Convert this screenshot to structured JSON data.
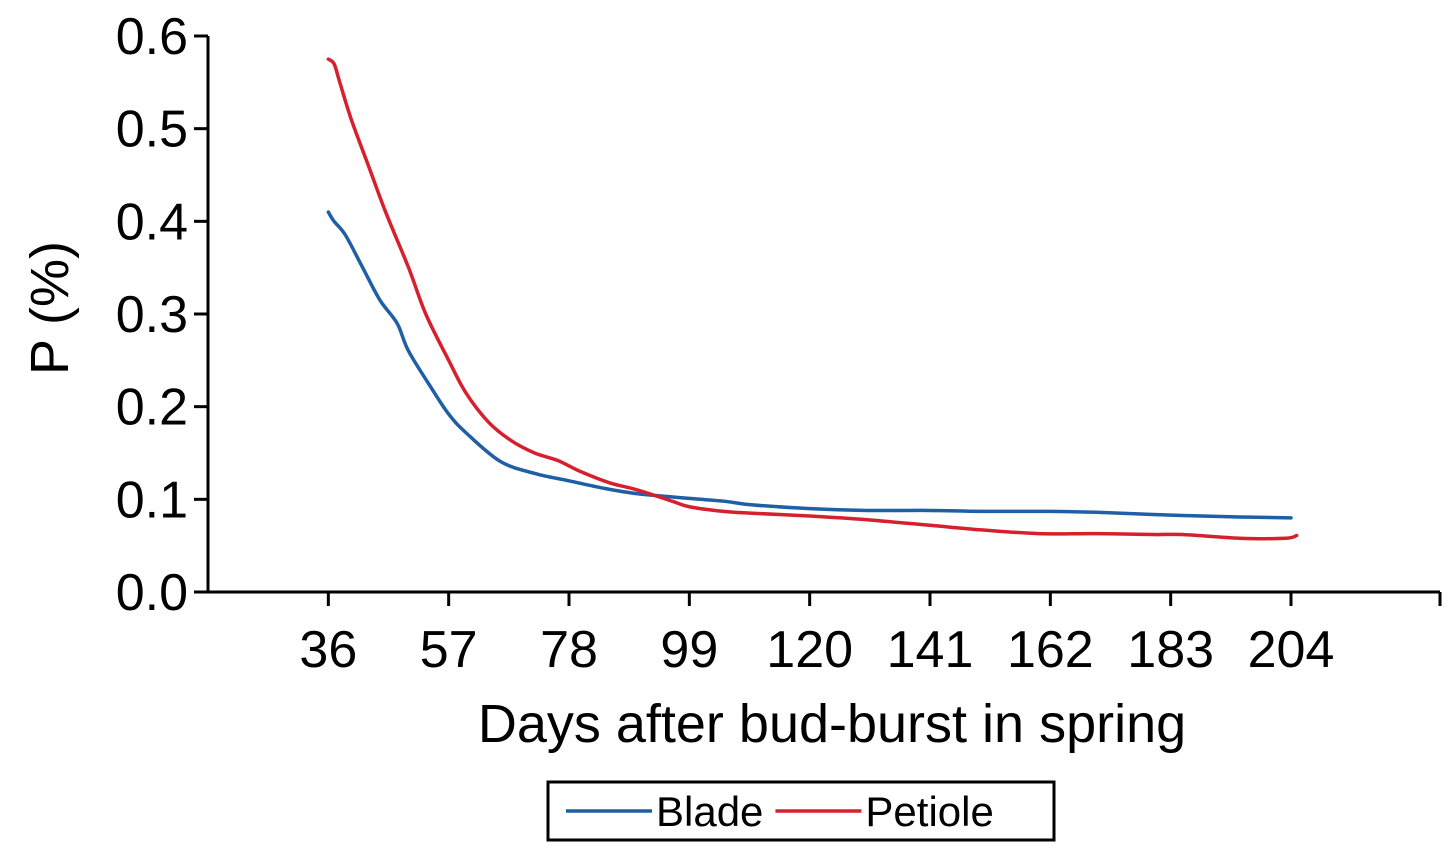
{
  "chart_data": {
    "type": "line",
    "xlabel": "Days after bud-burst in spring",
    "ylabel": "P (%)",
    "xlim": [
      15,
      230
    ],
    "ylim": [
      0.0,
      0.6
    ],
    "x_ticks": [
      36,
      57,
      78,
      99,
      120,
      141,
      162,
      183,
      204
    ],
    "x_tick_labels": [
      "36",
      "57",
      "78",
      "99",
      "120",
      "141",
      "162",
      "183",
      "204"
    ],
    "y_ticks": [
      0.0,
      0.1,
      0.2,
      0.3,
      0.4,
      0.5,
      0.6
    ],
    "y_tick_labels": [
      "0.0",
      "0.1",
      "0.2",
      "0.3",
      "0.4",
      "0.5",
      "0.6"
    ],
    "legend_position": "bottom-center",
    "series": [
      {
        "name": "Blade",
        "color": "#1f5fa6",
        "x": [
          36,
          37,
          39,
          42,
          45,
          48,
          50,
          54,
          57,
          60,
          66,
          72,
          78,
          84,
          90,
          99,
          105,
          110,
          120,
          130,
          141,
          150,
          162,
          170,
          183,
          195,
          204
        ],
        "y": [
          0.41,
          0.4,
          0.385,
          0.35,
          0.315,
          0.29,
          0.26,
          0.22,
          0.192,
          0.172,
          0.141,
          0.128,
          0.12,
          0.112,
          0.106,
          0.101,
          0.098,
          0.094,
          0.09,
          0.088,
          0.088,
          0.087,
          0.087,
          0.086,
          0.083,
          0.081,
          0.08
        ]
      },
      {
        "name": "Petiole",
        "color": "#d7202e",
        "x": [
          36,
          37,
          38,
          40,
          43,
          46,
          50,
          53,
          57,
          60,
          64,
          68,
          72,
          76,
          80,
          85,
          90,
          96,
          99,
          105,
          110,
          120,
          130,
          141,
          150,
          160,
          170,
          180,
          185,
          195,
          203,
          205
        ],
        "y": [
          0.575,
          0.57,
          0.55,
          0.51,
          0.46,
          0.41,
          0.35,
          0.3,
          0.25,
          0.215,
          0.183,
          0.163,
          0.15,
          0.142,
          0.13,
          0.118,
          0.11,
          0.098,
          0.092,
          0.087,
          0.085,
          0.082,
          0.078,
          0.072,
          0.067,
          0.063,
          0.063,
          0.062,
          0.062,
          0.058,
          0.058,
          0.061
        ]
      }
    ]
  }
}
